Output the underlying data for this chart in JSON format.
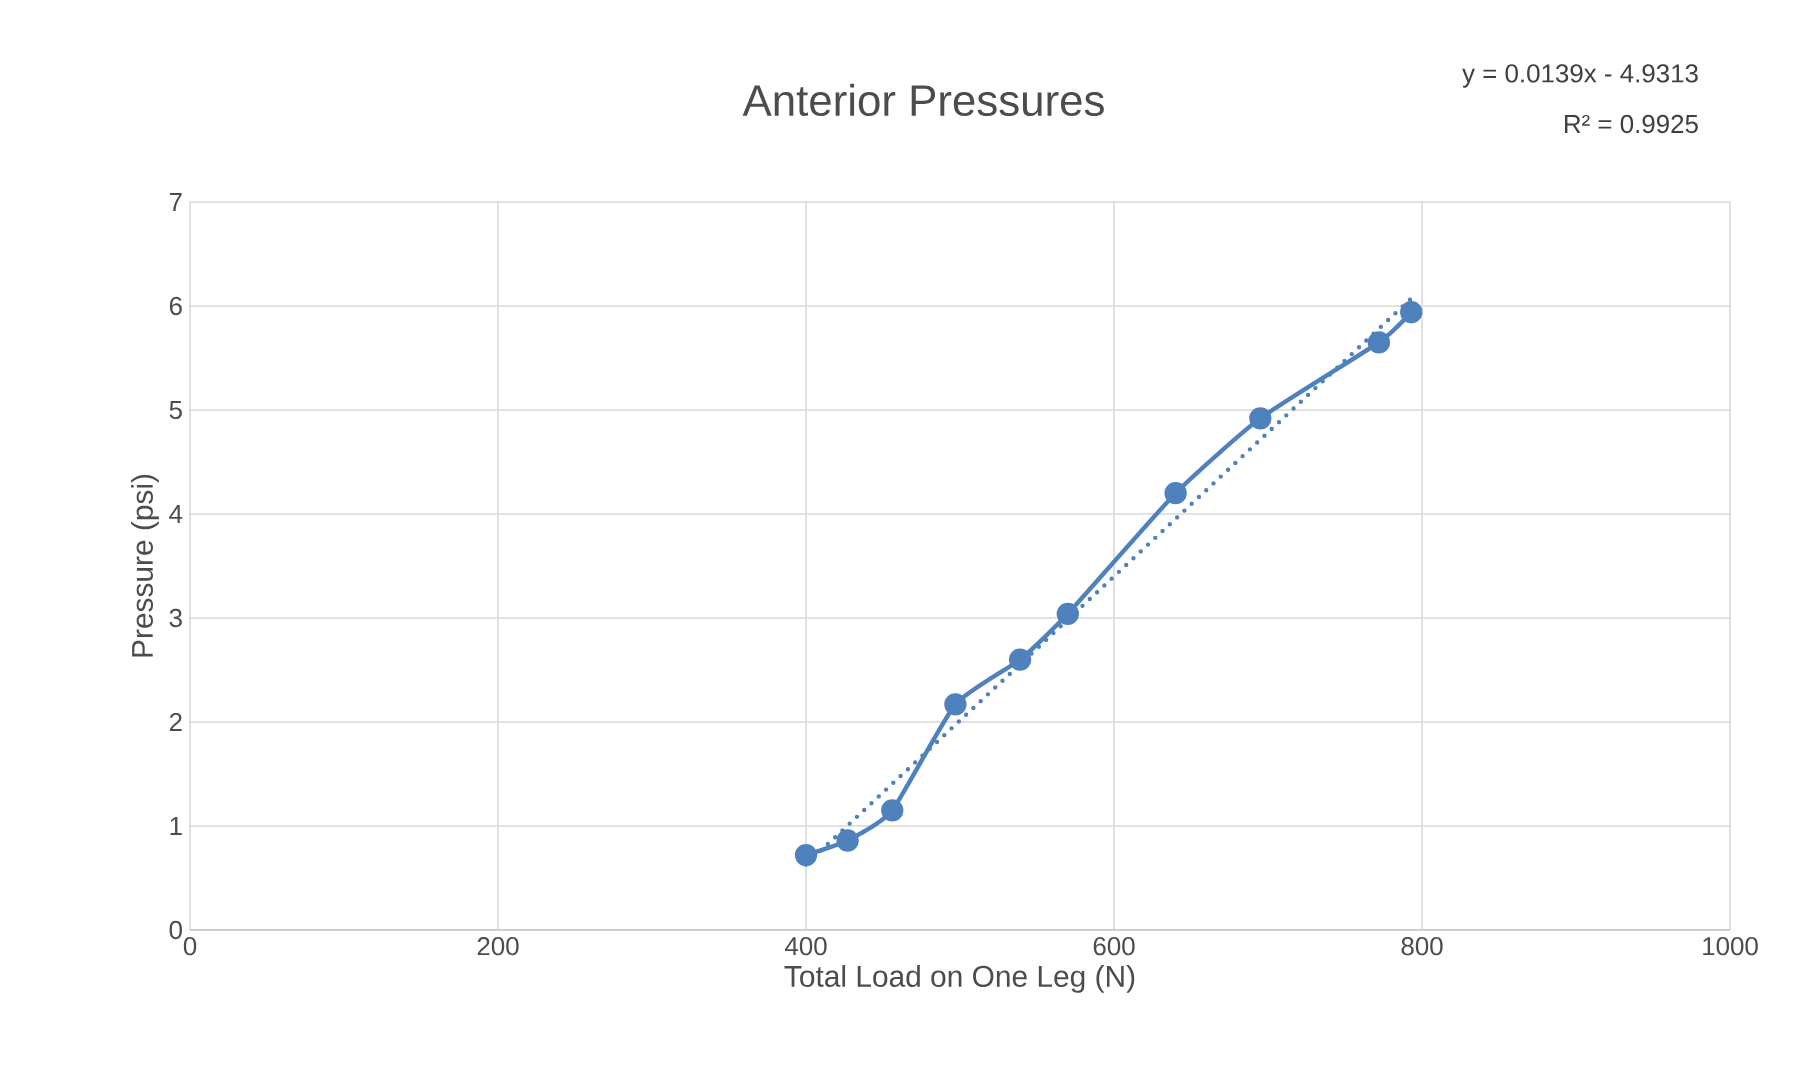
{
  "chart_data": {
    "type": "line",
    "title": "Anterior Pressures",
    "xlabel": "Total Load on One Leg (N)",
    "ylabel": "Pressure (psi)",
    "xlim": [
      0,
      1000
    ],
    "xticks": [
      0,
      200,
      400,
      600,
      800,
      1000
    ],
    "ylim": [
      0,
      7
    ],
    "yticks": [
      0,
      1,
      2,
      3,
      4,
      5,
      6,
      7
    ],
    "grid": true,
    "series": [
      {
        "color": "#4f81bd",
        "marker": "circle",
        "line_style": "solid",
        "x": [
          400,
          427,
          456,
          497,
          539,
          570,
          640,
          695,
          772,
          793
        ],
        "values": [
          0.72,
          0.86,
          1.15,
          2.17,
          2.6,
          3.04,
          4.2,
          4.92,
          5.65,
          5.94
        ]
      },
      {
        "color": "#4f81bd",
        "marker": "none",
        "line_style": "dotted",
        "x": [
          400,
          795
        ],
        "values": [
          0.63,
          6.1
        ]
      }
    ],
    "annotations": [
      "y = 0.0139x - 4.9313",
      "R² = 0.9925"
    ]
  }
}
